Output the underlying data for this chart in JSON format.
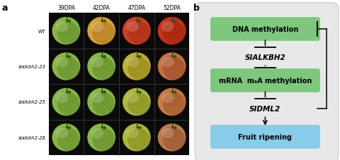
{
  "panel_a_label": "a",
  "panel_b_label": "b",
  "col_labels": [
    "39DPA",
    "42DPA",
    "47DPA",
    "52DPA"
  ],
  "row_labels": [
    "WT",
    "slalkbh2-23",
    "slalkbh2-25",
    "slalkbh2-28"
  ],
  "node1_label": "DNA methylation",
  "node2_label": "SIALKBH2",
  "node3_label": "mRNA  m₆A methylation",
  "node4_label": "Fruit ripening",
  "green_box_color": "#7dc87d",
  "blue_box_color": "#87cce8",
  "bg_color": "#e0e0e0",
  "panel_b_bg": "#e8e8e8",
  "tomato_grid": {
    "bg": "#0a0a0a",
    "cells": [
      [
        {
          "base": "#88b840",
          "top": "#6a9830",
          "shadow": "#4a6820"
        },
        {
          "base": "#d8a030",
          "top": "#c08828",
          "shadow": "#906018"
        },
        {
          "base": "#d04020",
          "top": "#b83018",
          "shadow": "#882010"
        },
        {
          "base": "#c83018",
          "top": "#b02810",
          "shadow": "#802008"
        }
      ],
      [
        {
          "base": "#88b840",
          "top": "#6a9830",
          "shadow": "#4a6820"
        },
        {
          "base": "#88b840",
          "top": "#6a9830",
          "shadow": "#4a6820"
        },
        {
          "base": "#c0b030",
          "top": "#a09020",
          "shadow": "#706010"
        },
        {
          "base": "#c87040",
          "top": "#a85028",
          "shadow": "#783018"
        }
      ],
      [
        {
          "base": "#88b840",
          "top": "#6a9830",
          "shadow": "#4a6820"
        },
        {
          "base": "#88b840",
          "top": "#6a9830",
          "shadow": "#4a6820"
        },
        {
          "base": "#b0b838",
          "top": "#909820",
          "shadow": "#606810"
        },
        {
          "base": "#c87840",
          "top": "#a85828",
          "shadow": "#784018"
        }
      ],
      [
        {
          "base": "#88b840",
          "top": "#6a9830",
          "shadow": "#4a6820"
        },
        {
          "base": "#88b840",
          "top": "#6a9830",
          "shadow": "#4a6820"
        },
        {
          "base": "#b0b838",
          "top": "#909820",
          "shadow": "#606810"
        },
        {
          "base": "#c07848",
          "top": "#a05830",
          "shadow": "#704020"
        }
      ]
    ]
  }
}
